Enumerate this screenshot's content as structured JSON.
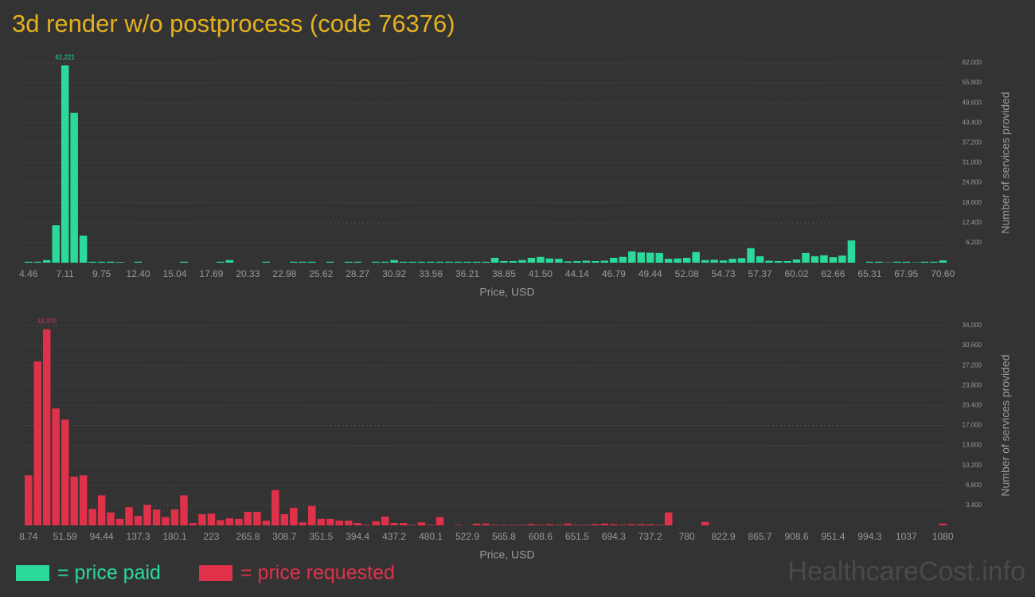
{
  "title": "3d render w/o postprocess (code 76376)",
  "watermark": "HealthcareCost.info",
  "chart_data": [
    {
      "type": "bar",
      "x_label": "Price, USD",
      "y_label": "Number of services provided",
      "grid": true,
      "categories": [
        "4.46",
        null,
        null,
        null,
        "7.11",
        null,
        null,
        null,
        "9.75",
        null,
        null,
        null,
        "12.40",
        null,
        null,
        null,
        "15.04",
        null,
        null,
        null,
        "17.69",
        null,
        null,
        null,
        "20.33",
        null,
        null,
        null,
        "22.98",
        null,
        null,
        null,
        "25.62",
        null,
        null,
        null,
        "28.27",
        null,
        null,
        null,
        "30.92",
        null,
        null,
        null,
        "33.56",
        null,
        null,
        null,
        "36.21",
        null,
        null,
        null,
        "38.85",
        null,
        null,
        null,
        "41.50",
        null,
        null,
        null,
        "44.14",
        null,
        null,
        null,
        "46.79",
        null,
        null,
        null,
        "49.44",
        null,
        null,
        null,
        "52.08",
        null,
        null,
        null,
        "54.73",
        null,
        null,
        null,
        "57.37",
        null,
        null,
        null,
        "60.02",
        null,
        null,
        null,
        "62.66",
        null,
        null,
        null,
        "65.31",
        null,
        null,
        null,
        "67.95",
        null,
        null,
        null,
        "70.60"
      ],
      "series": [
        {
          "name": "= price paid",
          "color": "#2bd99b",
          "values": [
            300,
            300,
            800,
            11600,
            61221,
            46500,
            8400,
            300,
            300,
            300,
            200,
            0,
            300,
            0,
            0,
            0,
            0,
            300,
            0,
            0,
            0,
            300,
            800,
            0,
            0,
            0,
            300,
            0,
            0,
            300,
            300,
            300,
            0,
            300,
            0,
            300,
            300,
            0,
            300,
            300,
            800,
            300,
            300,
            300,
            300,
            300,
            300,
            300,
            300,
            300,
            300,
            1500,
            500,
            500,
            800,
            1500,
            1800,
            1300,
            1200,
            400,
            500,
            600,
            500,
            600,
            1500,
            1800,
            3500,
            3200,
            3100,
            3000,
            1200,
            1300,
            1500,
            3300,
            800,
            900,
            700,
            1200,
            1400,
            4500,
            2000,
            600,
            500,
            500,
            1000,
            3000,
            2000,
            2300,
            1700,
            2200,
            6900,
            0,
            300,
            300,
            100,
            300,
            300,
            100,
            300,
            300,
            700
          ],
          "value_labels": [
            null,
            null,
            null,
            null,
            "61,221",
            null,
            null,
            null,
            null,
            null,
            null,
            null,
            null,
            null,
            null,
            null,
            null,
            null,
            null,
            null,
            null,
            null,
            null,
            null,
            null,
            null,
            null,
            null,
            null,
            null,
            null,
            null,
            null,
            null,
            null,
            null,
            null,
            null,
            null,
            null,
            null,
            null,
            null,
            null,
            null,
            null,
            null,
            null,
            null,
            null,
            null,
            null,
            null,
            null,
            null,
            null,
            null,
            null,
            null,
            null,
            null,
            null,
            null,
            null,
            null,
            null,
            null,
            null,
            null,
            null,
            null,
            null,
            null,
            null,
            null,
            null,
            null,
            null,
            null,
            null,
            null,
            null,
            null,
            null,
            null,
            null,
            null,
            null,
            null,
            null,
            null,
            null,
            null,
            null,
            null,
            null,
            null,
            null,
            null,
            null,
            null
          ]
        }
      ],
      "ylim": [
        0,
        62000
      ],
      "yticks": [
        {
          "value": 6200,
          "label": "6,200"
        },
        {
          "value": 12400,
          "label": "12,400"
        },
        {
          "value": 18600,
          "label": "18,600"
        },
        {
          "value": 24800,
          "label": "24,800"
        },
        {
          "value": 31000,
          "label": "31,000"
        },
        {
          "value": 37200,
          "label": "37,200"
        },
        {
          "value": 43400,
          "label": "43,400"
        },
        {
          "value": 49600,
          "label": "49,600"
        },
        {
          "value": 55800,
          "label": "55,800"
        },
        {
          "value": 62000,
          "label": "62,000"
        }
      ]
    },
    {
      "type": "bar",
      "x_label": "Price, USD",
      "y_label": "Number of services provided",
      "grid": true,
      "categories": [
        "8.74",
        null,
        null,
        null,
        "51.59",
        null,
        null,
        null,
        "94.44",
        null,
        null,
        null,
        "137.3",
        null,
        null,
        null,
        "180.1",
        null,
        null,
        null,
        "223",
        null,
        null,
        null,
        "265.8",
        null,
        null,
        null,
        "308.7",
        null,
        null,
        null,
        "351.5",
        null,
        null,
        null,
        "394.4",
        null,
        null,
        null,
        "437.2",
        null,
        null,
        null,
        "480.1",
        null,
        null,
        null,
        "522.9",
        null,
        null,
        null,
        "565.8",
        null,
        null,
        null,
        "608.6",
        null,
        null,
        null,
        "651.5",
        null,
        null,
        null,
        "694.3",
        null,
        null,
        null,
        "737.2",
        null,
        null,
        null,
        "780",
        null,
        null,
        null,
        "822.9",
        null,
        null,
        null,
        "865.7",
        null,
        null,
        null,
        "908.6",
        null,
        null,
        null,
        "951.4",
        null,
        null,
        null,
        "994.3",
        null,
        null,
        null,
        "1037",
        null,
        null,
        null,
        "1080"
      ],
      "series": [
        {
          "name": "= price requested",
          "color": "#e0314b",
          "values": [
            8500,
            27900,
            33370,
            19900,
            18000,
            8300,
            8500,
            2800,
            5100,
            2200,
            1100,
            3100,
            1600,
            3500,
            2700,
            1400,
            2700,
            5100,
            400,
            1900,
            2000,
            900,
            1200,
            1100,
            2300,
            2300,
            800,
            6000,
            1900,
            3000,
            500,
            3300,
            1100,
            1100,
            800,
            800,
            400,
            100,
            700,
            1500,
            400,
            400,
            100,
            500,
            100,
            1400,
            0,
            100,
            0,
            300,
            300,
            100,
            100,
            100,
            100,
            200,
            100,
            200,
            100,
            300,
            100,
            100,
            200,
            300,
            200,
            100,
            200,
            200,
            200,
            100,
            2200,
            0,
            0,
            0,
            600,
            0,
            0,
            0,
            0,
            0,
            0,
            0,
            0,
            0,
            0,
            0,
            0,
            0,
            0,
            0,
            0,
            0,
            0,
            0,
            0,
            0,
            0,
            0,
            0,
            0,
            300
          ],
          "value_labels": [
            null,
            null,
            "33,370",
            null,
            null,
            null,
            null,
            null,
            null,
            null,
            null,
            null,
            null,
            null,
            null,
            null,
            null,
            null,
            null,
            null,
            null,
            null,
            null,
            null,
            null,
            null,
            null,
            null,
            null,
            null,
            null,
            null,
            null,
            null,
            null,
            null,
            null,
            null,
            null,
            null,
            null,
            null,
            null,
            null,
            null,
            null,
            null,
            null,
            null,
            null,
            null,
            null,
            null,
            null,
            null,
            null,
            null,
            null,
            null,
            null,
            null,
            null,
            null,
            null,
            null,
            null,
            null,
            null,
            null,
            null,
            null,
            null,
            null,
            null,
            null,
            null,
            null,
            null,
            null,
            null,
            null,
            null,
            null,
            null,
            null,
            null,
            null,
            null,
            null,
            null,
            null,
            null,
            null,
            null,
            null,
            null,
            null,
            null,
            null,
            null,
            null
          ]
        }
      ],
      "ylim": [
        0,
        34000
      ],
      "yticks": [
        {
          "value": 3400,
          "label": "3,400"
        },
        {
          "value": 6800,
          "label": "6,800"
        },
        {
          "value": 10200,
          "label": "10,200"
        },
        {
          "value": 13600,
          "label": "13,600"
        },
        {
          "value": 17000,
          "label": "17,000"
        },
        {
          "value": 20400,
          "label": "20,400"
        },
        {
          "value": 23800,
          "label": "23,800"
        },
        {
          "value": 27200,
          "label": "27,200"
        },
        {
          "value": 30600,
          "label": "30,600"
        },
        {
          "value": 34000,
          "label": "34,000"
        }
      ]
    }
  ]
}
